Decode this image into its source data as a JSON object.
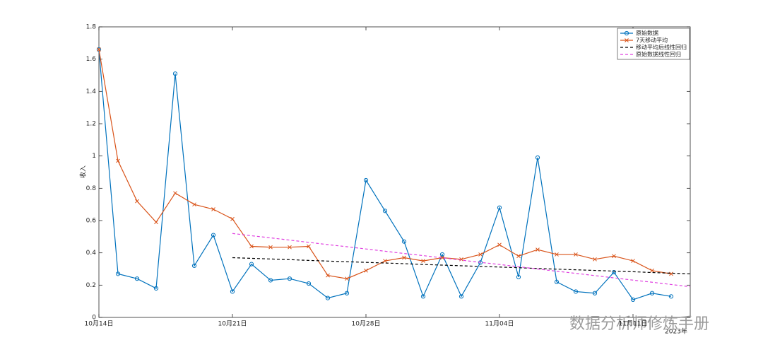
{
  "chart_data": {
    "type": "line",
    "y_label": "收入",
    "x_year_label": "2023年",
    "watermark": "数据分析师修炼手册",
    "categories": [
      "10月14日",
      null,
      null,
      null,
      null,
      null,
      null,
      "10月21日",
      null,
      null,
      null,
      null,
      null,
      null,
      "10月28日",
      null,
      null,
      null,
      null,
      null,
      null,
      "11月04日",
      null,
      null,
      null,
      null,
      null,
      null,
      "11月11日",
      null,
      null,
      null
    ],
    "ylim": [
      0,
      1.8
    ],
    "yticks": [
      0,
      0.2,
      0.4,
      0.6,
      0.8,
      1,
      1.2,
      1.4,
      1.6,
      1.8
    ],
    "grid": false,
    "legend": "top-right",
    "series": [
      {
        "name": "原始数据",
        "color": "#0072BD",
        "marker": "o",
        "dash": "solid",
        "values": [
          1.66,
          0.27,
          0.24,
          0.18,
          1.51,
          0.32,
          0.51,
          0.16,
          0.33,
          0.23,
          0.24,
          0.21,
          0.12,
          0.15,
          0.85,
          0.66,
          0.47,
          0.13,
          0.39,
          0.13,
          0.34,
          0.68,
          0.25,
          0.99,
          0.22,
          0.16,
          0.15,
          0.28,
          0.11,
          0.15,
          0.13,
          null
        ]
      },
      {
        "name": "7天移动平均",
        "color": "#D95319",
        "marker": "x",
        "dash": "solid",
        "values": [
          1.66,
          0.97,
          0.72,
          0.59,
          0.77,
          0.7,
          0.67,
          0.61,
          0.44,
          0.435,
          0.435,
          0.44,
          0.26,
          0.24,
          0.29,
          0.35,
          0.37,
          0.35,
          0.37,
          0.36,
          0.39,
          0.45,
          0.38,
          0.42,
          0.39,
          0.39,
          0.36,
          0.38,
          0.35,
          0.29,
          0.27,
          null
        ]
      },
      {
        "name": "移动平均后线性回归",
        "color": "#000000",
        "marker": "none",
        "dash": "dashed",
        "values": [
          null,
          null,
          null,
          null,
          null,
          null,
          null,
          0.37,
          0.366,
          0.362,
          0.358,
          0.353,
          0.349,
          0.345,
          0.341,
          0.337,
          0.333,
          0.328,
          0.324,
          0.32,
          0.316,
          0.312,
          0.308,
          0.303,
          0.299,
          0.295,
          0.291,
          0.287,
          0.283,
          0.278,
          0.274,
          0.27
        ]
      },
      {
        "name": "原始数据线性回归",
        "color": "#E040E0",
        "marker": "none",
        "dash": "dashed",
        "values": [
          null,
          null,
          null,
          null,
          null,
          null,
          null,
          0.52,
          0.506,
          0.493,
          0.479,
          0.465,
          0.451,
          0.438,
          0.424,
          0.41,
          0.396,
          0.383,
          0.369,
          0.355,
          0.341,
          0.328,
          0.314,
          0.3,
          0.286,
          0.273,
          0.259,
          0.245,
          0.231,
          0.218,
          0.204,
          0.19
        ]
      }
    ]
  }
}
